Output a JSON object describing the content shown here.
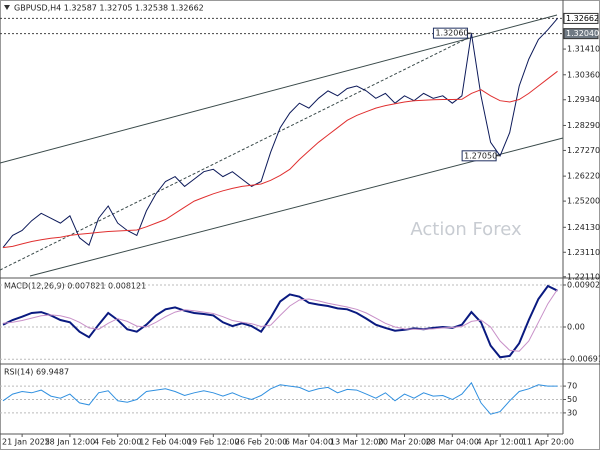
{
  "chart_data": [
    {
      "type": "line",
      "title": "GBPUSD,H4 1.32587 1.32705 1.32538 1.32662",
      "watermark": "Action Forex",
      "ylim": [
        1.221,
        1.3321
      ],
      "yticks": [
        {
          "value": 1.3141,
          "label": "1.31410"
        },
        {
          "value": 1.3036,
          "label": "1.30360"
        },
        {
          "value": 1.2934,
          "label": "1.29340"
        },
        {
          "value": 1.2829,
          "label": "1.28290"
        },
        {
          "value": 1.2727,
          "label": "1.27270"
        },
        {
          "value": 1.2622,
          "label": "1.26220"
        },
        {
          "value": 1.252,
          "label": "1.25200"
        },
        {
          "value": 1.2413,
          "label": "1.24130"
        },
        {
          "value": 1.2311,
          "label": "1.23110"
        },
        {
          "value": 1.2211,
          "label": "1.22110"
        }
      ],
      "levels": [
        {
          "value": 1.32662,
          "color": "#ffffff",
          "text_color": "#000000"
        },
        {
          "value": 1.3204,
          "label": "1.32040",
          "color": "#707a84",
          "text_color": "#ffffff"
        }
      ],
      "annotations": [
        {
          "value": 1.3206,
          "label": "1.32060"
        },
        {
          "value": 1.2705,
          "label": "1.27050"
        }
      ],
      "series": [
        {
          "color": "#0d1a5a",
          "values": [
            1.233,
            1.238,
            1.24,
            1.244,
            1.247,
            1.245,
            1.243,
            1.246,
            1.237,
            1.234,
            1.245,
            1.25,
            1.243,
            1.24,
            1.238,
            1.248,
            1.255,
            1.26,
            1.262,
            1.258,
            1.261,
            1.264,
            1.265,
            1.262,
            1.264,
            1.261,
            1.258,
            1.26,
            1.272,
            1.282,
            1.288,
            1.292,
            1.29,
            1.294,
            1.297,
            1.295,
            1.298,
            1.299,
            1.297,
            1.294,
            1.296,
            1.292,
            1.295,
            1.293,
            1.296,
            1.294,
            1.295,
            1.292,
            1.295,
            1.3206,
            1.295,
            1.276,
            1.2705,
            1.28,
            1.299,
            1.31,
            1.318,
            1.322,
            1.32662
          ]
        },
        {
          "color": "#e03030",
          "values": [
            1.233,
            1.2335,
            1.2345,
            1.2355,
            1.2362,
            1.2368,
            1.2372,
            1.238,
            1.2385,
            1.2388,
            1.2392,
            1.2396,
            1.2398,
            1.24,
            1.2402,
            1.2415,
            1.243,
            1.2445,
            1.247,
            1.2495,
            1.252,
            1.2535,
            1.255,
            1.2562,
            1.2572,
            1.258,
            1.2585,
            1.259,
            1.2605,
            1.2625,
            1.265,
            1.269,
            1.2725,
            1.276,
            1.279,
            1.282,
            1.285,
            1.287,
            1.2885,
            1.29,
            1.291,
            1.2918,
            1.2925,
            1.293,
            1.2932,
            1.2934,
            1.2935,
            1.2935,
            1.2936,
            1.296,
            1.2975,
            1.295,
            1.293,
            1.2925,
            1.2935,
            1.296,
            1.299,
            1.302,
            1.305
          ]
        }
      ]
    },
    {
      "type": "line",
      "title": "MACD(12,26,9) 0.007821 0.008121",
      "ylim": [
        -0.00773,
        0.01009
      ],
      "yticks": [
        0.00902,
        {
          "value": 0,
          "label": "0.00"
        },
        -0.006915
      ],
      "series": [
        {
          "color": "#0a1a80",
          "values": [
            0.0005,
            0.0015,
            0.0022,
            0.003,
            0.0032,
            0.0025,
            0.0015,
            0.001,
            -0.001,
            -0.0022,
            0.0005,
            0.003,
            0.0015,
            -0.0005,
            -0.001,
            0.0005,
            0.0025,
            0.0038,
            0.0042,
            0.0035,
            0.003,
            0.0028,
            0.0025,
            0.001,
            0.0002,
            0.0008,
            0.0002,
            -0.001,
            0.002,
            0.0055,
            0.007,
            0.0065,
            0.0052,
            0.0048,
            0.0045,
            0.004,
            0.0038,
            0.003,
            0.0018,
            0.0005,
            -0.0002,
            -0.0008,
            -0.0006,
            -0.0003,
            -0.0005,
            -0.0002,
            0.0,
            -0.0002,
            0.0005,
            0.0032,
            0.001,
            -0.004,
            -0.0065,
            -0.0062,
            -0.0035,
            0.0015,
            0.006,
            0.0088,
            0.0078
          ]
        },
        {
          "color": "#c890c8",
          "values": [
            0.0008,
            0.001,
            0.0014,
            0.0019,
            0.0024,
            0.0026,
            0.0024,
            0.0019,
            0.001,
            -0.0002,
            -0.0005,
            0.0008,
            0.0018,
            0.0012,
            0.0002,
            0.0,
            0.001,
            0.0022,
            0.0032,
            0.0037,
            0.0035,
            0.0032,
            0.0029,
            0.0022,
            0.0014,
            0.001,
            0.0007,
            0.0001,
            0.0004,
            0.0025,
            0.0045,
            0.0058,
            0.006,
            0.0056,
            0.0051,
            0.0047,
            0.0043,
            0.0038,
            0.003,
            0.0019,
            0.0008,
            0.0,
            -0.0004,
            -0.0005,
            -0.0005,
            -0.0004,
            -0.0002,
            -0.0001,
            0.0001,
            0.0012,
            0.0015,
            0.0,
            -0.003,
            -0.005,
            -0.0052,
            -0.003,
            0.001,
            0.005,
            0.0081
          ]
        }
      ]
    },
    {
      "type": "line",
      "title": "RSI(14) 69.9487",
      "ylim": [
        0,
        100
      ],
      "yticks": [
        70,
        50,
        30
      ],
      "categories": [
        null,
        null,
        "21 Jan 2025",
        null,
        null,
        null,
        null,
        "28 Jan 12:00",
        null,
        null,
        null,
        null,
        "4 Feb 20:00",
        null,
        null,
        null,
        null,
        "12 Feb 04:00",
        null,
        null,
        null,
        null,
        "19 Feb 12:00",
        null,
        null,
        null,
        null,
        "26 Feb 20:00",
        null,
        null,
        null,
        null,
        "6 Mar 04:00",
        null,
        null,
        null,
        null,
        "13 Mar 12:00",
        null,
        null,
        null,
        null,
        "20 Mar 20:00",
        null,
        null,
        null,
        null,
        "28 Mar 04:00",
        null,
        null,
        null,
        null,
        "4 Apr 12:00",
        null,
        null,
        null,
        null,
        "11 Apr 20:00",
        null
      ],
      "series": [
        {
          "color": "#3090e0",
          "values": [
            48,
            58,
            62,
            60,
            64,
            55,
            52,
            58,
            45,
            42,
            60,
            63,
            48,
            46,
            50,
            62,
            64,
            66,
            62,
            56,
            60,
            63,
            60,
            55,
            60,
            54,
            50,
            56,
            66,
            72,
            70,
            68,
            62,
            66,
            68,
            60,
            65,
            64,
            58,
            52,
            60,
            48,
            58,
            52,
            60,
            55,
            56,
            50,
            58,
            75,
            45,
            28,
            32,
            48,
            62,
            66,
            72,
            70,
            69.9487
          ]
        }
      ]
    }
  ]
}
